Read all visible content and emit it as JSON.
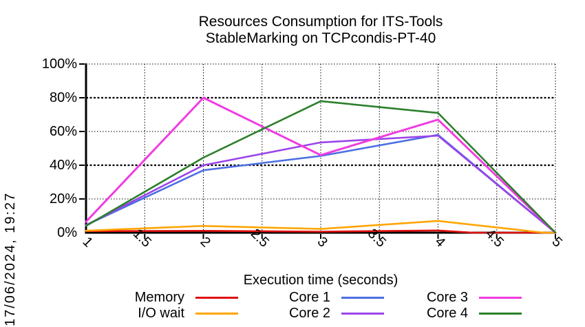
{
  "timestamp": "17/06/2024, 19:27",
  "chart_data": {
    "type": "line",
    "title": "Resources Consumption for ITS-Tools",
    "subtitle": "StableMarking on TCPcondis-PT-40",
    "xlabel": "Execution time (seconds)",
    "ylabel": "",
    "xlim": [
      1,
      5
    ],
    "ylim": [
      0,
      100
    ],
    "x_ticks": [
      1,
      1.5,
      2,
      2.5,
      3,
      3.5,
      4,
      4.5,
      5
    ],
    "x_tick_labels": [
      "1",
      "1.5",
      "2",
      "2.5",
      "3",
      "3.5",
      "4",
      "4.5",
      "5"
    ],
    "y_ticks": [
      0,
      20,
      40,
      60,
      80,
      100
    ],
    "y_tick_labels": [
      "0%",
      "20%",
      "40%",
      "60%",
      "80%",
      "100%"
    ],
    "grid": true,
    "legend_position": "bottom",
    "series": [
      {
        "name": "Memory",
        "color": "#e01010",
        "x": [
          1,
          2,
          3,
          4,
          4.3,
          5
        ],
        "values": [
          0.9,
          1.1,
          0.6,
          1.3,
          0,
          0
        ]
      },
      {
        "name": "I/O wait",
        "color": "#ffa500",
        "x": [
          1,
          2,
          3,
          4,
          4.9,
          5
        ],
        "values": [
          1.2,
          4,
          2.2,
          7,
          0,
          0
        ]
      },
      {
        "name": "Core 1",
        "color": "#4d6ee3",
        "x": [
          1,
          2,
          3,
          4,
          5
        ],
        "values": [
          4.5,
          37,
          45.5,
          58,
          0
        ]
      },
      {
        "name": "Core 2",
        "color": "#9a44ea",
        "x": [
          1,
          2,
          3,
          4,
          5
        ],
        "values": [
          4.5,
          40,
          53.5,
          57.5,
          0
        ]
      },
      {
        "name": "Core 3",
        "color": "#f03ce0",
        "x": [
          1,
          2,
          3,
          4,
          5
        ],
        "values": [
          6.5,
          80,
          46,
          67,
          0
        ]
      },
      {
        "name": "Core 4",
        "color": "#2b7f2b",
        "x": [
          1,
          2,
          3,
          4,
          5
        ],
        "values": [
          4,
          44.5,
          78,
          71,
          0
        ]
      }
    ],
    "legend_columns": [
      [
        "Memory",
        "I/O wait"
      ],
      [
        "Core 1",
        "Core 2"
      ],
      [
        "Core 3",
        "Core 4"
      ]
    ]
  }
}
